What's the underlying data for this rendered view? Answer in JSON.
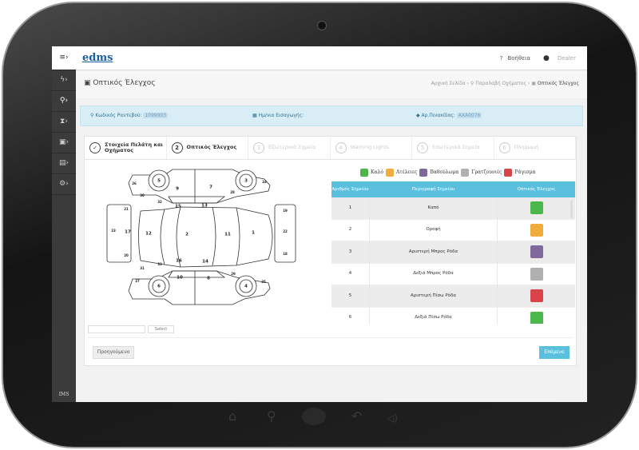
{
  "topbar": {
    "logo": "edms",
    "help": "Βοήθεια",
    "user": "Dealer"
  },
  "page": {
    "title": "Οπτικός Έλεγχος",
    "breadcrumb": [
      "Αρχική Σελίδα",
      "Παραλαβή Οχήματος",
      "Οπτικός Έλεγχος"
    ]
  },
  "info": {
    "appointment_label": "Κωδικός Ραντεβού:",
    "appointment_value": "1099903",
    "date_label": "Ημ/νια Εισαγωγής:",
    "plate_label": "Αρ.Πινακίδας:",
    "plate_value": "ΑΧΑ0076"
  },
  "steps": [
    {
      "num": "✓",
      "label": "Στοιχεία Πελάτη και Οχήματος",
      "state": "done"
    },
    {
      "num": "2",
      "label": "Οπτικός Έλεγχος",
      "state": "active"
    },
    {
      "num": "3",
      "label": "Εξωτερικά Σημεία",
      "state": "pending"
    },
    {
      "num": "4",
      "label": "Warning Lights",
      "state": "pending"
    },
    {
      "num": "5",
      "label": "Εσωτερικά Σημεία",
      "state": "pending"
    },
    {
      "num": "6",
      "label": "Πληρωμή",
      "state": "pending"
    }
  ],
  "legend": [
    {
      "label": "Καλό",
      "color": "#4cb84c"
    },
    {
      "label": "Ατέλειες",
      "color": "#f0ad3e"
    },
    {
      "label": "Βαθούλωμα",
      "color": "#7f6a9b"
    },
    {
      "label": "Γρατζουνιές",
      "color": "#b0b0b0"
    },
    {
      "label": "Ράγισμα",
      "color": "#d9434a"
    }
  ],
  "table": {
    "headers": [
      "Αριθμός Σημείου",
      "Περιγραφή Σημείου",
      "Οπτικός Έλεγχος"
    ],
    "rows": [
      {
        "num": "1",
        "desc": "Καπό",
        "status": "Καλό",
        "color": "#4cb84c"
      },
      {
        "num": "2",
        "desc": "Οροφή",
        "status": "Ατέλειες",
        "color": "#f0ad3e"
      },
      {
        "num": "3",
        "desc": "Αριστερή Μπρος Ρόδα",
        "status": "Βαθούλωμα",
        "color": "#7f6a9b"
      },
      {
        "num": "4",
        "desc": "Δεξιά Μπρος Ρόδα",
        "status": "Γρατζουνιές",
        "color": "#b0b0b0"
      },
      {
        "num": "5",
        "desc": "Αριστερή Πίσω Ρόδα",
        "status": "Ράγισμα",
        "color": "#d9434a"
      },
      {
        "num": "6",
        "desc": "Δεξιά Πίσω Ρόδα",
        "status": "Καλό",
        "color": "#4cb84c"
      }
    ]
  },
  "diagram": {
    "labels": [
      "5",
      "3",
      "26",
      "24",
      "9",
      "7",
      "30",
      "28",
      "32",
      "15",
      "13",
      "21",
      "19",
      "23",
      "17",
      "12",
      "2",
      "11",
      "1",
      "22",
      "20",
      "18",
      "33",
      "16",
      "14",
      "31",
      "29",
      "10",
      "8",
      "27",
      "25",
      "6",
      "4"
    ]
  },
  "select": {
    "value": "",
    "button": "Select"
  },
  "buttons": {
    "prev": "Προηγούμενο",
    "next": "Επόμενο"
  }
}
